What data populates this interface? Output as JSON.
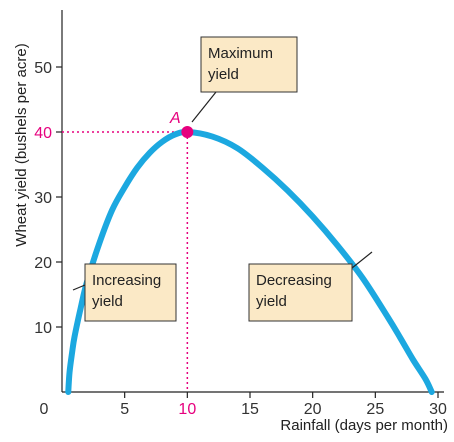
{
  "chart_data": {
    "type": "line",
    "xlabel": "Rainfall (days per month)",
    "ylabel": "Wheat yield (bushels per acre)",
    "xlim": [
      0,
      30
    ],
    "ylim": [
      0,
      55
    ],
    "x_ticks": [
      "0",
      "5",
      "10",
      "15",
      "20",
      "25",
      "30"
    ],
    "y_ticks": [
      "10",
      "20",
      "30",
      "40",
      "50"
    ],
    "series": [
      {
        "x": [
          0.5,
          0.6,
          0.8,
          1,
          1.5,
          2,
          3,
          4,
          5,
          6,
          7,
          8,
          9,
          10,
          12,
          14,
          16,
          18,
          20,
          22,
          24,
          26,
          27,
          28,
          29,
          29.5
        ],
        "y": [
          0,
          3,
          6,
          8.5,
          13,
          17,
          23,
          28,
          31.5,
          34.5,
          36.8,
          38.5,
          39.6,
          40,
          39.3,
          37.5,
          34.5,
          31,
          27,
          22.5,
          17.5,
          11.5,
          8.3,
          5,
          2,
          0
        ],
        "color": "#1ca8e0"
      }
    ],
    "highlight_point": {
      "label": "A",
      "x": 10,
      "y": 40,
      "color": "#e6007e"
    },
    "highlight_x_label": "10",
    "highlight_y_label": "40",
    "grid": false,
    "annotations": [
      {
        "id": "max",
        "lines": [
          "Maximum",
          "yield"
        ]
      },
      {
        "id": "inc",
        "lines": [
          "Increasing",
          "yield"
        ]
      },
      {
        "id": "dec",
        "lines": [
          "Decreasing",
          "yield"
        ]
      }
    ]
  }
}
